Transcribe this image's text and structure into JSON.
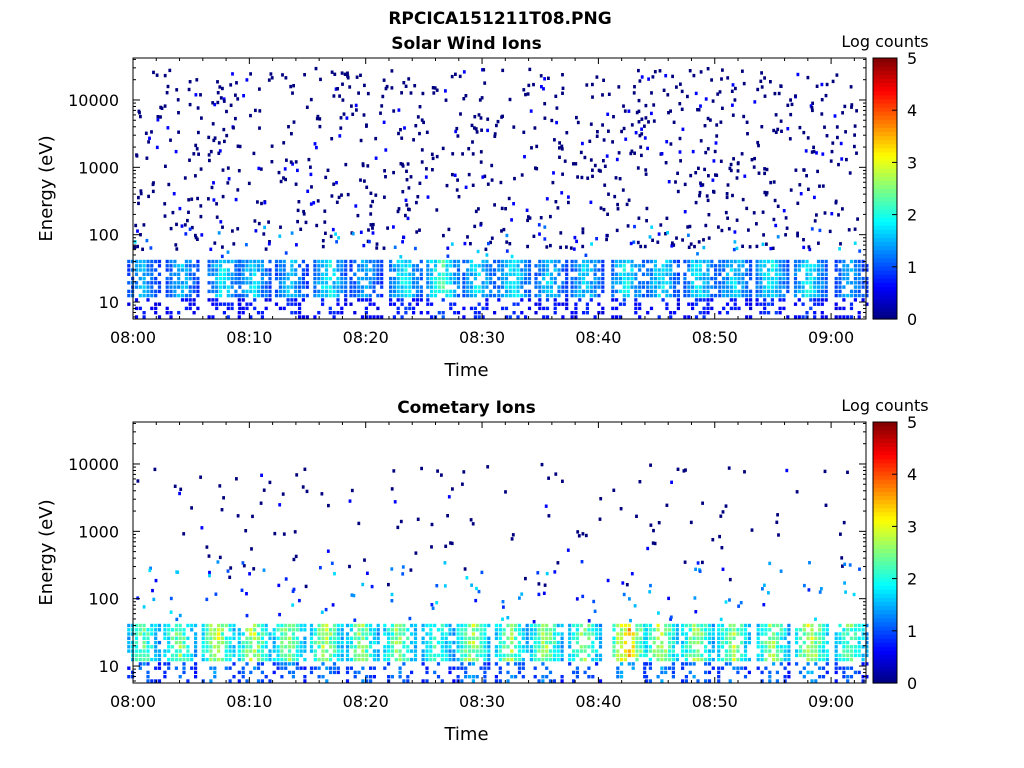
{
  "figure_title": "RPCICA151211T08.PNG",
  "colors": {
    "colormap": [
      "#00007f",
      "#0000ff",
      "#007fff",
      "#00ffff",
      "#7fff7f",
      "#ffff00",
      "#ff7f00",
      "#ff0000",
      "#7f0000"
    ]
  },
  "chart_data": [
    {
      "type": "heatmap",
      "title": "Solar Wind Ions",
      "xlabel": "Time",
      "ylabel": "Energy (eV)",
      "x_ticks": [
        "08:00",
        "08:10",
        "08:20",
        "08:30",
        "08:40",
        "08:50",
        "09:00"
      ],
      "y_ticks": [
        "10",
        "100",
        "1000",
        "10000"
      ],
      "y_scale": "log",
      "ylim": [
        5.6,
        42000
      ],
      "xlim": [
        "08:00",
        "09:03"
      ],
      "colorbar": {
        "label": "Log counts",
        "range": [
          0,
          5
        ],
        "ticks": [
          "0",
          "1",
          "2",
          "3",
          "4",
          "5"
        ]
      },
      "background_noise_range_eV": [
        60,
        30000
      ],
      "bursts": [
        {
          "t": 0.7,
          "level": 1.6
        },
        {
          "t": 4.0,
          "level": 1.7
        },
        {
          "t": 7.6,
          "level": 1.9
        },
        {
          "t": 10.2,
          "level": 1.8
        },
        {
          "t": 13.4,
          "level": 1.7
        },
        {
          "t": 16.7,
          "level": 2.0
        },
        {
          "t": 19.8,
          "level": 1.6
        },
        {
          "t": 23.2,
          "level": 2.0
        },
        {
          "t": 26.4,
          "level": 2.3
        },
        {
          "t": 29.5,
          "level": 1.9
        },
        {
          "t": 32.5,
          "level": 2.0
        },
        {
          "t": 35.7,
          "level": 1.8
        },
        {
          "t": 38.8,
          "level": 1.8
        },
        {
          "t": 42.3,
          "level": 2.0
        },
        {
          "t": 45.3,
          "level": 1.9
        },
        {
          "t": 48.5,
          "level": 1.9
        },
        {
          "t": 51.5,
          "level": 1.8
        },
        {
          "t": 54.7,
          "level": 2.0
        },
        {
          "t": 58.0,
          "level": 2.0
        },
        {
          "t": 61.5,
          "level": 1.6
        }
      ]
    },
    {
      "type": "heatmap",
      "title": "Cometary Ions",
      "xlabel": "Time",
      "ylabel": "Energy (eV)",
      "x_ticks": [
        "08:00",
        "08:10",
        "08:20",
        "08:30",
        "08:40",
        "08:50",
        "09:00"
      ],
      "y_ticks": [
        "10",
        "100",
        "1000",
        "10000"
      ],
      "y_scale": "log",
      "ylim": [
        5.6,
        42000
      ],
      "xlim": [
        "08:00",
        "09:03"
      ],
      "colorbar": {
        "label": "Log counts",
        "range": [
          0,
          5
        ],
        "ticks": [
          "0",
          "1",
          "2",
          "3",
          "4",
          "5"
        ]
      },
      "background_noise_range_eV": [
        150,
        10000
      ],
      "bursts": [
        {
          "t": 0.7,
          "level": 2.5
        },
        {
          "t": 3.8,
          "level": 2.7
        },
        {
          "t": 7.1,
          "level": 3.0
        },
        {
          "t": 10.2,
          "level": 2.9
        },
        {
          "t": 13.2,
          "level": 2.8
        },
        {
          "t": 16.4,
          "level": 2.9
        },
        {
          "t": 19.5,
          "level": 2.7
        },
        {
          "t": 22.7,
          "level": 2.8
        },
        {
          "t": 26.0,
          "level": 2.4
        },
        {
          "t": 29.0,
          "level": 2.9
        },
        {
          "t": 32.3,
          "level": 2.8
        },
        {
          "t": 35.3,
          "level": 2.8
        },
        {
          "t": 38.6,
          "level": 2.7
        },
        {
          "t": 42.4,
          "level": 3.6
        },
        {
          "t": 45.2,
          "level": 3.0
        },
        {
          "t": 48.3,
          "level": 2.8
        },
        {
          "t": 51.4,
          "level": 2.9
        },
        {
          "t": 54.8,
          "level": 2.8
        },
        {
          "t": 58.1,
          "level": 3.1
        },
        {
          "t": 61.5,
          "level": 2.6
        }
      ]
    }
  ]
}
